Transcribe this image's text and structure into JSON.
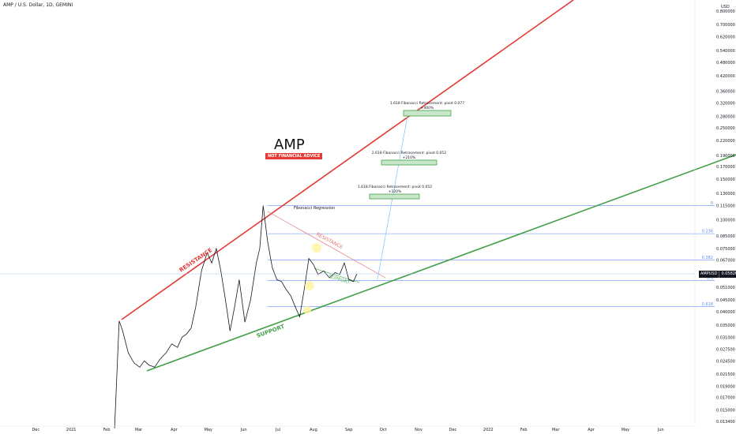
{
  "header": {
    "symbol_line": "AMP / U.S. Dollar, 1D, GEMINI",
    "currency": "USD"
  },
  "annotations": {
    "title": "AMP",
    "advice": "NOT FINANCIAL ADVICE",
    "fib_regression": "Fibonacci Regression",
    "resistance_main": "RESISTANCE",
    "support_main": "SUPPORT",
    "resistance_small": "RESISTANCE",
    "support_small": "SUPPORT",
    "fib_targets": [
      {
        "line1": "1.618 Fibonacci Retracement: pivot 0.077",
        "line2": "+400%"
      },
      {
        "line1": "2.618 Fibonacci Retracement: pivot 0.052",
        "line2": "+210%"
      },
      {
        "line1": "1.618 Fibonacci Retracement: pivot 0.052",
        "line2": "+120%"
      }
    ],
    "fib_levels": [
      "0",
      "0.236",
      "0.382",
      "0.5",
      "0.618"
    ]
  },
  "price_tag": {
    "symbol": "AMPUSD",
    "value": "0.058200"
  },
  "colors": {
    "resistance": "#e53935",
    "support": "#43a047",
    "fib_line": "#5d8ef5",
    "price": "#131722",
    "target_fill": "#c8e6c9",
    "target_stroke": "#43a047"
  },
  "chart_data": {
    "type": "line",
    "scale": "log",
    "y_ticks": [
      "0.800000",
      "0.700000",
      "0.620000",
      "0.540000",
      "0.480000",
      "0.420000",
      "0.360000",
      "0.320000",
      "0.280000",
      "0.250000",
      "0.220000",
      "0.190000",
      "0.170000",
      "0.150000",
      "0.130000",
      "0.115000",
      "0.100000",
      "0.085000",
      "0.075000",
      "0.067000",
      "0.058200",
      "0.051000",
      "0.045000",
      "0.040000",
      "0.035000",
      "0.031000",
      "0.027500",
      "0.024500",
      "0.021500",
      "0.019000",
      "0.017000",
      "0.015000",
      "0.013400"
    ],
    "x_ticks": [
      "Dec",
      "2021",
      "Feb",
      "Mar",
      "Apr",
      "May",
      "Jun",
      "Jul",
      "Aug",
      "Sep",
      "Oct",
      "Nov",
      "Dec",
      "2022",
      "Feb",
      "Mar",
      "Apr",
      "May",
      "Jun"
    ],
    "series": [
      {
        "x": [
          "2021-02-08",
          "2021-02-12",
          "2021-02-15",
          "2021-02-20",
          "2021-02-25",
          "2021-03-02",
          "2021-03-06",
          "2021-03-10",
          "2021-03-15",
          "2021-03-20",
          "2021-03-25",
          "2021-03-30",
          "2021-04-04",
          "2021-04-08",
          "2021-04-12",
          "2021-04-16",
          "2021-04-20",
          "2021-04-25",
          "2021-04-30",
          "2021-05-04",
          "2021-05-08",
          "2021-05-12",
          "2021-05-16",
          "2021-05-20",
          "2021-05-24",
          "2021-05-28",
          "2021-06-02",
          "2021-06-07",
          "2021-06-12",
          "2021-06-15",
          "2021-06-18",
          "2021-06-22",
          "2021-06-26",
          "2021-06-30",
          "2021-07-04",
          "2021-07-08",
          "2021-07-12",
          "2021-07-16",
          "2021-07-20",
          "2021-07-24",
          "2021-07-28",
          "2021-08-01",
          "2021-08-05",
          "2021-08-10",
          "2021-08-15",
          "2021-08-20",
          "2021-08-24",
          "2021-08-28",
          "2021-09-01",
          "2021-09-05",
          "2021-09-08"
        ],
        "y": [
          0.0125,
          0.0365,
          0.033,
          0.0265,
          0.024,
          0.023,
          0.0245,
          0.0235,
          0.023,
          0.025,
          0.0265,
          0.029,
          0.028,
          0.031,
          0.032,
          0.034,
          0.042,
          0.06,
          0.072,
          0.065,
          0.075,
          0.06,
          0.045,
          0.033,
          0.042,
          0.055,
          0.036,
          0.045,
          0.065,
          0.075,
          0.115,
          0.08,
          0.062,
          0.055,
          0.054,
          0.05,
          0.047,
          0.042,
          0.038,
          0.05,
          0.068,
          0.064,
          0.058,
          0.06,
          0.056,
          0.059,
          0.058,
          0.065,
          0.055,
          0.054,
          0.0582
        ]
      }
    ]
  }
}
